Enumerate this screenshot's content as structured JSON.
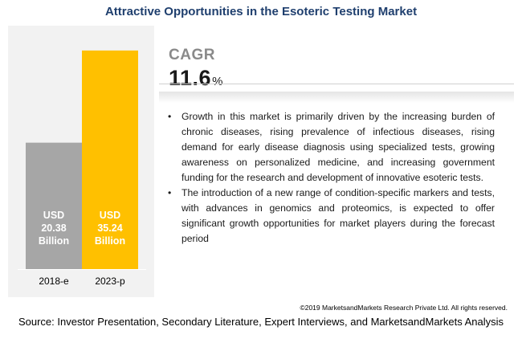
{
  "title": "Attractive Opportunities in the Esoteric Testing Market",
  "cagr": {
    "label": "CAGR",
    "value": "11.6",
    "unit": "%"
  },
  "bullets": [
    "Growth in this market is primarily driven by the increasing burden of chronic diseases, rising prevalence of infectious diseases, rising demand for early disease diagnosis using specialized tests, growing awareness on personalized medicine, and increasing government funding for the research and development of innovative esoteric tests.",
    "The introduction of a new range of condition-specific markers and tests, with advances in genomics and proteomics, is expected to offer significant growth opportunities for market players during the forecast period"
  ],
  "bullet_symbol": "•",
  "copyright": "©2019 MarketsandMarkets Research Private Ltd. All rights reserved.",
  "source": "Source: Investor Presentation, Secondary Literature, Expert Interviews, and MarketsandMarkets Analysis",
  "colors": {
    "bar_2018": "#a6a6a6",
    "bar_2023": "#ffc000",
    "title": "#1f3f6e"
  },
  "chart_data": {
    "type": "bar",
    "categories": [
      "2018-e",
      "2023-p"
    ],
    "values": [
      20.38,
      35.24
    ],
    "unit": "USD Billion",
    "bar_labels": [
      [
        "USD",
        "20.38",
        "Billion"
      ],
      [
        "USD",
        "35.24",
        "Billion"
      ]
    ],
    "ylim": [
      0,
      36
    ],
    "grid": false
  }
}
